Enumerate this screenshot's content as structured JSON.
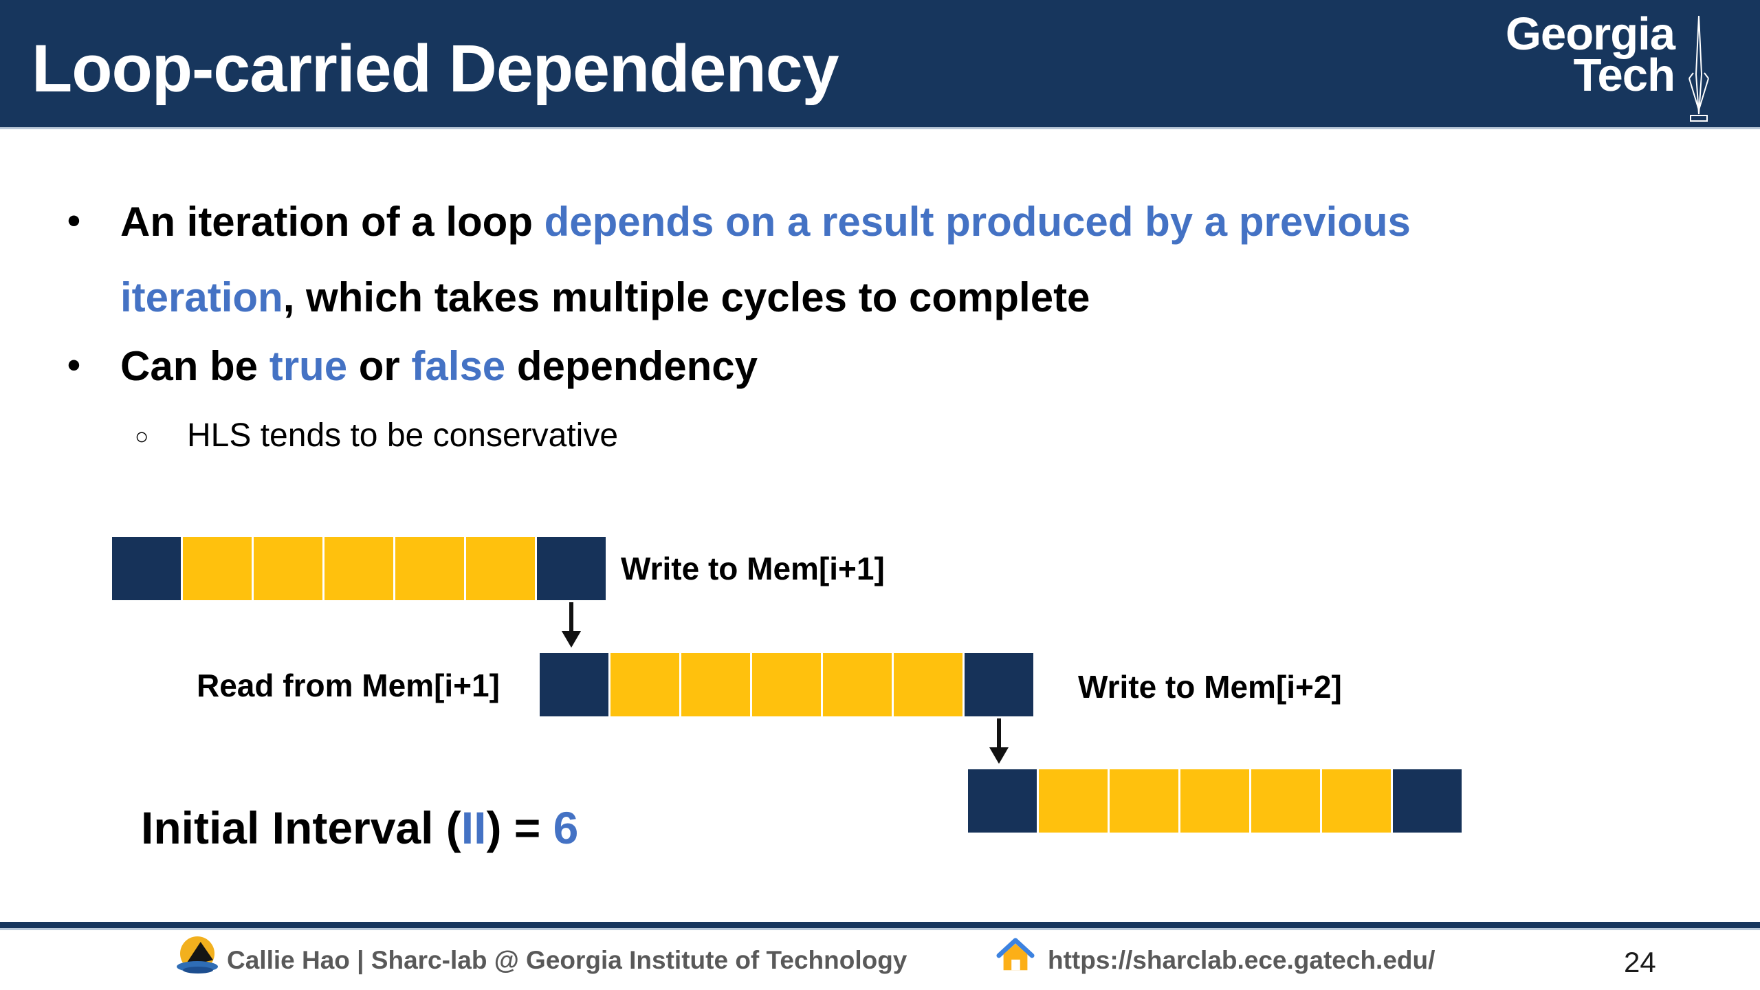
{
  "header": {
    "title": "Loop-carried Dependency"
  },
  "gt_logo": {
    "line1": "Georgia",
    "line2": "Tech"
  },
  "bullets": {
    "b1_marker": "•",
    "b1_l1_black": "An iteration of a loop ",
    "b1_l1_blue": "depends on a result produced by a previous",
    "b1_l2_blue": "iteration",
    "b1_l2_black": ", which takes multiple cycles to complete",
    "b2_marker": "•",
    "b2_seg1": "Can be ",
    "b2_true": "true",
    "b2_seg2": " or ",
    "b2_false": "false",
    "b2_seg3": " dependency",
    "sub_marker": "○",
    "sub_text": "HLS tends to be conservative"
  },
  "diagram": {
    "bars": [
      {
        "name": "iteration-1",
        "blocks": [
          "navy",
          "gold",
          "gold",
          "gold",
          "gold",
          "gold",
          "navy"
        ]
      },
      {
        "name": "iteration-2",
        "blocks": [
          "navy",
          "gold",
          "gold",
          "gold",
          "gold",
          "gold",
          "navy"
        ]
      },
      {
        "name": "iteration-3",
        "blocks": [
          "navy",
          "gold",
          "gold",
          "gold",
          "gold",
          "gold",
          "navy"
        ]
      }
    ],
    "labels": {
      "write_mem_i1": "Write to Mem[i+1]",
      "read_mem_i1": "Read from Mem[i+1]",
      "write_mem_i2": "Write to Mem[i+2]"
    },
    "initial_interval": {
      "pre": "Initial Interval (",
      "ii": "II",
      "mid": ") = ",
      "value": "6"
    }
  },
  "footer": {
    "author": "Callie Hao | Sharc-lab @ Georgia Institute of Technology",
    "url": "https://sharclab.ece.gatech.edu/",
    "page_number": "24"
  },
  "colors": {
    "header_navy": "#17365D",
    "navy": "#163259",
    "gold": "#FFC10D",
    "accent_blue": "#4472C4",
    "footer_gray": "#595959"
  }
}
